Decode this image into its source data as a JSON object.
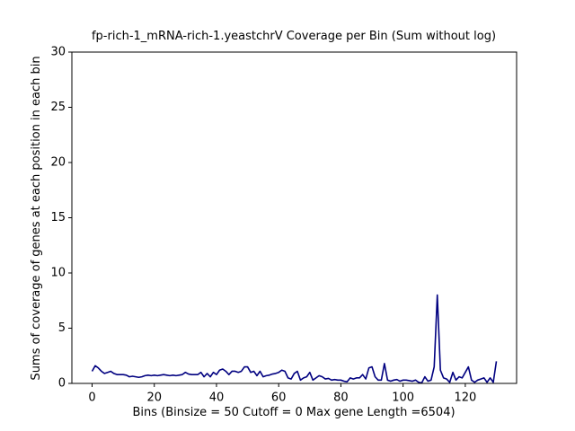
{
  "chart_data": {
    "type": "line",
    "title": "fp-rich-1_mRNA-rich-1.yeastchrV Coverage per Bin (Sum without log)",
    "x_label": "Bins  (Binsize = 50 Cutoff = 0 Max gene Length =6504)",
    "y_label": "Sums of coverage of genes at each position in each bin",
    "x": [
      0,
      1,
      2,
      3,
      4,
      5,
      6,
      7,
      8,
      9,
      10,
      11,
      12,
      13,
      14,
      15,
      16,
      17,
      18,
      19,
      20,
      21,
      22,
      23,
      24,
      25,
      26,
      27,
      28,
      29,
      30,
      31,
      32,
      33,
      34,
      35,
      36,
      37,
      38,
      39,
      40,
      41,
      42,
      43,
      44,
      45,
      46,
      47,
      48,
      49,
      50,
      51,
      52,
      53,
      54,
      55,
      56,
      57,
      58,
      59,
      60,
      61,
      62,
      63,
      64,
      65,
      66,
      67,
      68,
      69,
      70,
      71,
      72,
      73,
      74,
      75,
      76,
      77,
      78,
      79,
      80,
      81,
      82,
      83,
      84,
      85,
      86,
      87,
      88,
      89,
      90,
      91,
      92,
      93,
      94,
      95,
      96,
      97,
      98,
      99,
      100,
      101,
      102,
      103,
      104,
      105,
      106,
      107,
      108,
      109,
      110,
      111,
      112,
      113,
      114,
      115,
      116,
      117,
      118,
      119,
      120,
      121,
      122,
      123,
      124,
      125,
      126,
      127,
      128,
      129,
      130
    ],
    "series": [
      {
        "color": "#000080",
        "values": [
          1.1,
          1.6,
          1.4,
          1.1,
          0.9,
          1.0,
          1.1,
          0.9,
          0.8,
          0.8,
          0.8,
          0.75,
          0.6,
          0.65,
          0.6,
          0.55,
          0.6,
          0.7,
          0.75,
          0.7,
          0.75,
          0.7,
          0.75,
          0.8,
          0.75,
          0.7,
          0.75,
          0.7,
          0.75,
          0.8,
          1.0,
          0.85,
          0.8,
          0.8,
          0.8,
          1.0,
          0.6,
          0.9,
          0.6,
          1.0,
          0.8,
          1.2,
          1.3,
          1.1,
          0.8,
          1.1,
          1.1,
          1.0,
          1.1,
          1.5,
          1.5,
          1.0,
          1.1,
          0.7,
          1.1,
          0.6,
          0.7,
          0.75,
          0.85,
          0.9,
          1.0,
          1.2,
          1.1,
          0.5,
          0.4,
          0.9,
          1.1,
          0.3,
          0.5,
          0.6,
          1.0,
          0.3,
          0.5,
          0.7,
          0.6,
          0.4,
          0.45,
          0.3,
          0.35,
          0.3,
          0.3,
          0.2,
          0.15,
          0.5,
          0.4,
          0.5,
          0.5,
          0.8,
          0.4,
          1.4,
          1.5,
          0.6,
          0.3,
          0.3,
          1.8,
          0.3,
          0.2,
          0.3,
          0.35,
          0.2,
          0.3,
          0.3,
          0.25,
          0.2,
          0.3,
          0.1,
          0.05,
          0.6,
          0.2,
          0.3,
          1.5,
          8.0,
          1.2,
          0.5,
          0.4,
          0.1,
          1.0,
          0.3,
          0.6,
          0.5,
          1.0,
          1.5,
          0.3,
          0.1,
          0.3,
          0.4,
          0.5,
          0.1,
          0.5,
          0.1,
          2.0
        ]
      }
    ],
    "xlim": [
      -6.5,
      136.5
    ],
    "xticks": [
      0,
      20,
      40,
      60,
      80,
      100,
      120
    ],
    "ylim": [
      0,
      30
    ],
    "yticks": [
      0,
      5,
      10,
      15,
      20,
      25,
      30
    ],
    "grid": false
  }
}
